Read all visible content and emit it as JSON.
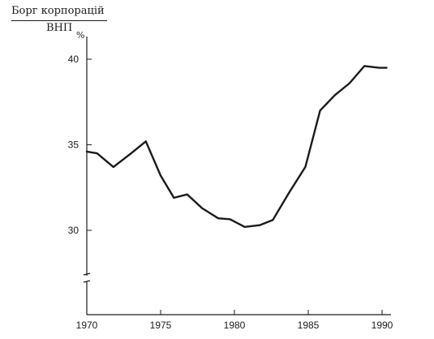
{
  "chart_data": {
    "type": "line",
    "ylabel_top": "Борг корпорацій",
    "ylabel_bottom": "ВНП",
    "y_unit": "%",
    "xlim": [
      1970,
      1990.5
    ],
    "ylim": [
      25,
      41.5
    ],
    "x_ticks": [
      1970,
      1975,
      1980,
      1985,
      1990
    ],
    "y_ticks": [
      30,
      35,
      40
    ],
    "axis_break": true,
    "grid": false,
    "series": [
      {
        "color": "#1a1a1a",
        "x": [
          1970,
          1970.7,
          1971.8,
          1973,
          1974,
          1975,
          1975.9,
          1976.8,
          1977.8,
          1978.9,
          1979.7,
          1980.7,
          1981.7,
          1982.6,
          1983.7,
          1984.8,
          1985.8,
          1986.8,
          1987.8,
          1988.8,
          1989.8,
          1990.3
        ],
        "y": [
          34.6,
          34.5,
          33.7,
          34.5,
          35.2,
          33.2,
          31.9,
          32.1,
          31.3,
          30.7,
          30.65,
          30.2,
          30.3,
          30.6,
          32.2,
          33.7,
          37.0,
          37.9,
          38.6,
          39.6,
          39.5,
          39.5
        ]
      }
    ]
  }
}
